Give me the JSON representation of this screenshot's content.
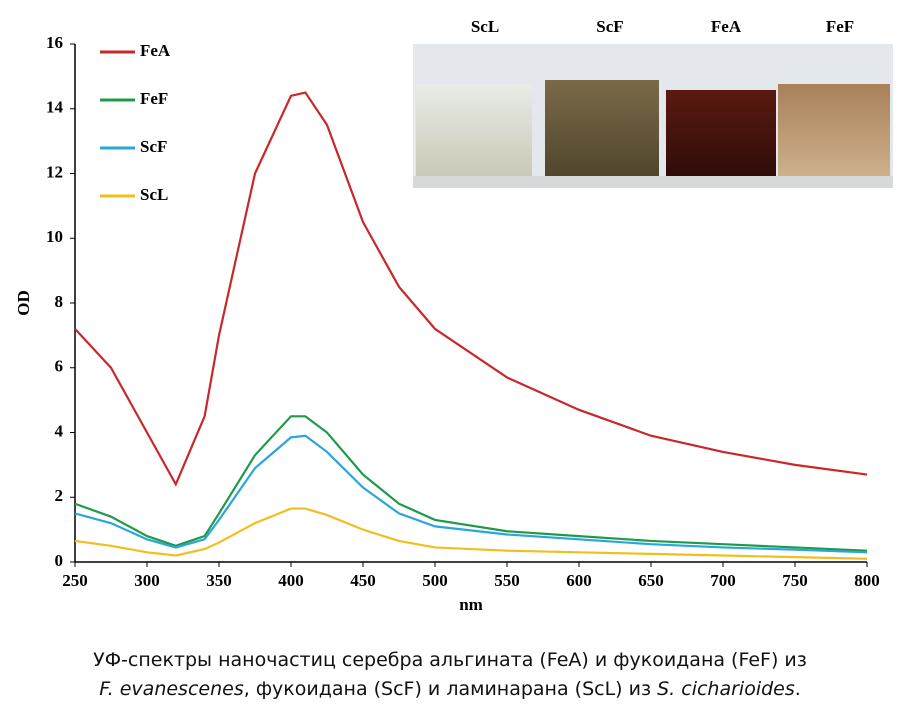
{
  "chart_data": {
    "type": "line",
    "x": [
      250,
      275,
      300,
      320,
      340,
      350,
      375,
      400,
      410,
      425,
      450,
      475,
      500,
      550,
      600,
      650,
      700,
      750,
      800
    ],
    "series": [
      {
        "name": "FeA",
        "color": "#c8282a",
        "values": [
          7.2,
          6.0,
          4.0,
          2.4,
          4.5,
          7.0,
          12.0,
          14.4,
          14.5,
          13.5,
          10.5,
          8.5,
          7.2,
          5.7,
          4.7,
          3.9,
          3.4,
          3.0,
          2.7
        ]
      },
      {
        "name": "FeF",
        "color": "#1f9a4a",
        "values": [
          1.8,
          1.4,
          0.8,
          0.5,
          0.8,
          1.5,
          3.3,
          4.5,
          4.5,
          4.0,
          2.7,
          1.8,
          1.3,
          0.95,
          0.8,
          0.65,
          0.55,
          0.45,
          0.35
        ]
      },
      {
        "name": "ScF",
        "color": "#2aa6d8",
        "values": [
          1.5,
          1.2,
          0.7,
          0.45,
          0.7,
          1.3,
          2.9,
          3.85,
          3.9,
          3.4,
          2.3,
          1.5,
          1.1,
          0.85,
          0.7,
          0.55,
          0.45,
          0.38,
          0.3
        ]
      },
      {
        "name": "ScL",
        "color": "#f0be1e",
        "values": [
          0.65,
          0.5,
          0.3,
          0.2,
          0.4,
          0.6,
          1.2,
          1.65,
          1.65,
          1.45,
          1.0,
          0.65,
          0.45,
          0.35,
          0.3,
          0.25,
          0.2,
          0.15,
          0.1
        ]
      }
    ],
    "xlim": [
      250,
      800
    ],
    "xticks": [
      250,
      300,
      350,
      400,
      450,
      500,
      550,
      600,
      650,
      700,
      750,
      800
    ],
    "ylim": [
      0,
      16
    ],
    "yticks": [
      0,
      2,
      4,
      6,
      8,
      10,
      12,
      14,
      16
    ],
    "xlabel": "nm",
    "ylabel": "OD",
    "inset_labels": [
      "ScL",
      "ScF",
      "FeA",
      "FeF"
    ]
  },
  "caption": [
    "УФ-спектры наночастиц серебра альгината (FeA) и фукоидана (FeF) из",
    "F. evanescenes",
    ", фукоидана (ScF) и ламинарана (ScL) из ",
    "S. cicharioides",
    "."
  ]
}
